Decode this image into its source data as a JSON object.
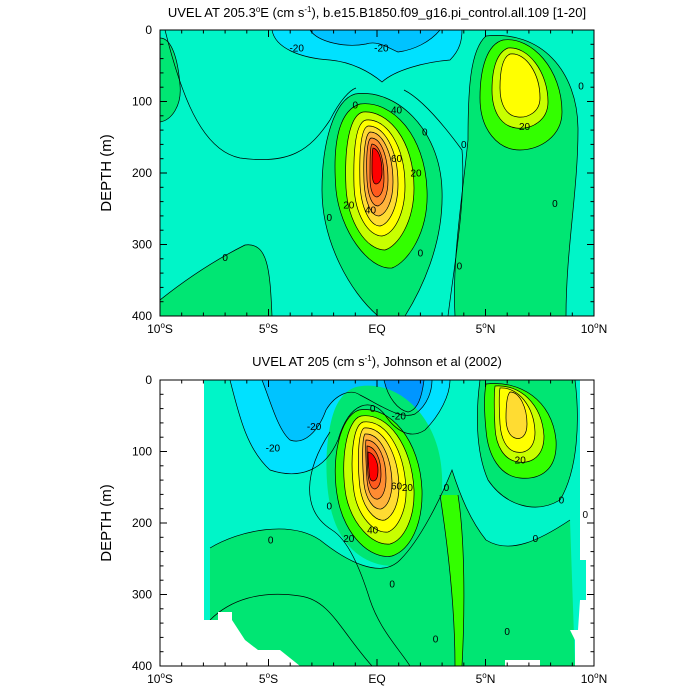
{
  "chart_data": [
    {
      "type": "contour",
      "title": "UVEL AT 205.3",
      "title_sup": "o",
      "title_tail": "E (cm s",
      "title_exp": "-1",
      "title_end": "), b.e15.B1850.f09_g16.pi_control.all.109 [1-20]",
      "ylabel": "DEPTH (m)",
      "xlim": [
        -10,
        10
      ],
      "ylim": [
        400,
        0
      ],
      "xticks": [
        {
          "v": -10,
          "label": "10",
          "deg": "o",
          "hemi": "S"
        },
        {
          "v": -5,
          "label": "5",
          "deg": "o",
          "hemi": "S"
        },
        {
          "v": 0,
          "label": "EQ",
          "deg": "",
          "hemi": ""
        },
        {
          "v": 5,
          "label": "5",
          "deg": "o",
          "hemi": "N"
        },
        {
          "v": 10,
          "label": "10",
          "deg": "o",
          "hemi": "N"
        }
      ],
      "yticks": [
        {
          "v": 0,
          "label": "0"
        },
        {
          "v": 100,
          "label": "100"
        },
        {
          "v": 200,
          "label": "200"
        },
        {
          "v": 300,
          "label": "300"
        },
        {
          "v": 400,
          "label": "400"
        }
      ],
      "background_color": "#00f5c8",
      "contour_labels": [
        {
          "x": -3.7,
          "y": 25,
          "text": "-20"
        },
        {
          "x": 0.2,
          "y": 25,
          "text": "-20"
        },
        {
          "x": -1.0,
          "y": 105,
          "text": "0"
        },
        {
          "x": 2.2,
          "y": 143,
          "text": "0"
        },
        {
          "x": 0.9,
          "y": 112,
          "text": "40"
        },
        {
          "x": 0.9,
          "y": 180,
          "text": "60"
        },
        {
          "x": 1.8,
          "y": 200,
          "text": "20"
        },
        {
          "x": -1.3,
          "y": 245,
          "text": "20"
        },
        {
          "x": -0.3,
          "y": 252,
          "text": "40"
        },
        {
          "x": -2.2,
          "y": 262,
          "text": "0"
        },
        {
          "x": -7.0,
          "y": 318,
          "text": "0"
        },
        {
          "x": 2.0,
          "y": 312,
          "text": "0"
        },
        {
          "x": 3.8,
          "y": 330,
          "text": "0"
        },
        {
          "x": 4.0,
          "y": 160,
          "text": "0"
        },
        {
          "x": 6.8,
          "y": 135,
          "text": "20"
        },
        {
          "x": 9.4,
          "y": 78,
          "text": "0"
        },
        {
          "x": 8.2,
          "y": 243,
          "text": "0"
        }
      ]
    },
    {
      "type": "contour",
      "title": "UVEL AT 205 (cm s",
      "title_exp": "-1",
      "title_end": "), Johnson et al (2002)",
      "ylabel": "DEPTH (m)",
      "xlim": [
        -10,
        10
      ],
      "ylim": [
        400,
        0
      ],
      "xticks": [
        {
          "v": -10,
          "label": "10",
          "deg": "o",
          "hemi": "S"
        },
        {
          "v": -5,
          "label": "5",
          "deg": "o",
          "hemi": "S"
        },
        {
          "v": 0,
          "label": "EQ",
          "deg": "",
          "hemi": ""
        },
        {
          "v": 5,
          "label": "5",
          "deg": "o",
          "hemi": "N"
        },
        {
          "v": 10,
          "label": "10",
          "deg": "o",
          "hemi": "N"
        }
      ],
      "yticks": [
        {
          "v": 0,
          "label": "0"
        },
        {
          "v": 100,
          "label": "100"
        },
        {
          "v": 200,
          "label": "200"
        },
        {
          "v": 300,
          "label": "300"
        },
        {
          "v": 400,
          "label": "400"
        }
      ],
      "background_color": "#00f5c8",
      "contour_labels": [
        {
          "x": -4.8,
          "y": 95,
          "text": "-20"
        },
        {
          "x": -2.9,
          "y": 65,
          "text": "-20"
        },
        {
          "x": -0.2,
          "y": 40,
          "text": "0"
        },
        {
          "x": 1.0,
          "y": 50,
          "text": "-20"
        },
        {
          "x": 1.4,
          "y": 150,
          "text": "20"
        },
        {
          "x": 0.9,
          "y": 148,
          "text": "60"
        },
        {
          "x": -0.2,
          "y": 210,
          "text": "40"
        },
        {
          "x": -1.3,
          "y": 222,
          "text": "20"
        },
        {
          "x": -2.2,
          "y": 176,
          "text": "0"
        },
        {
          "x": -4.9,
          "y": 224,
          "text": "0"
        },
        {
          "x": 3.2,
          "y": 150,
          "text": "0"
        },
        {
          "x": 6.6,
          "y": 112,
          "text": "20"
        },
        {
          "x": 8.5,
          "y": 168,
          "text": "0"
        },
        {
          "x": 9.6,
          "y": 188,
          "text": "0"
        },
        {
          "x": 7.3,
          "y": 222,
          "text": "0"
        },
        {
          "x": 0.7,
          "y": 285,
          "text": "0"
        },
        {
          "x": 2.7,
          "y": 362,
          "text": "0"
        },
        {
          "x": 6.0,
          "y": 352,
          "text": "0"
        }
      ]
    }
  ]
}
